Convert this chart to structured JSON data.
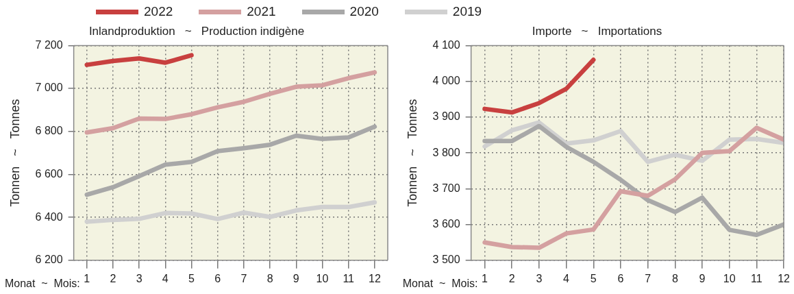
{
  "chart_data": [
    {
      "type": "line",
      "title": "Inlandproduktion   ~   Production indigène",
      "xlabel": "Monat  ~  Mois:",
      "ylabel": "Tonnen   ~   Tonnes",
      "x": [
        1,
        2,
        3,
        4,
        5,
        6,
        7,
        8,
        9,
        10,
        11,
        12
      ],
      "xlim": [
        0.5,
        12.5
      ],
      "xticks": [
        1,
        2,
        3,
        4,
        5,
        6,
        7,
        8,
        9,
        10,
        11,
        12
      ],
      "ylim": [
        6200,
        7200
      ],
      "yticks": [
        {
          "value": 6200,
          "label": "6 200"
        },
        {
          "value": 6400,
          "label": "6 400"
        },
        {
          "value": 6600,
          "label": "6 600"
        },
        {
          "value": 6800,
          "label": "6 800"
        },
        {
          "value": 7000,
          "label": "7 000"
        },
        {
          "value": 7200,
          "label": "7 200"
        }
      ],
      "grid": true,
      "legend": "top",
      "marker": "none",
      "line_style": "solid",
      "series": [
        {
          "name": "2022",
          "color": "#c8403f",
          "values": [
            7110,
            7128,
            7140,
            7120,
            7155,
            null,
            null,
            null,
            null,
            null,
            null,
            null
          ]
        },
        {
          "name": "2021",
          "color": "#d4a0a0",
          "values": [
            6795,
            6815,
            6860,
            6858,
            6880,
            6912,
            6938,
            6975,
            7008,
            7015,
            7048,
            7075
          ]
        },
        {
          "name": "2020",
          "color": "#a8a8a8",
          "values": [
            6505,
            6540,
            6592,
            6645,
            6658,
            6708,
            6722,
            6738,
            6780,
            6765,
            6772,
            6822
          ]
        },
        {
          "name": "2019",
          "color": "#d0d0d0",
          "values": [
            6380,
            6388,
            6393,
            6420,
            6418,
            6392,
            6422,
            6402,
            6432,
            6448,
            6448,
            6470
          ]
        }
      ]
    },
    {
      "type": "line",
      "title": "Importe   ~   Importations",
      "xlabel": "Monat  ~  Mois:",
      "ylabel": "Tonnen   ~   Tonnes",
      "x": [
        1,
        2,
        3,
        4,
        5,
        6,
        7,
        8,
        9,
        10,
        11,
        12
      ],
      "xlim": [
        0.5,
        12
      ],
      "xticks": [
        1,
        2,
        3,
        4,
        5,
        6,
        7,
        8,
        9,
        10,
        11,
        12
      ],
      "ylim": [
        3500,
        4100
      ],
      "yticks": [
        {
          "value": 3500,
          "label": "3 500"
        },
        {
          "value": 3600,
          "label": "3 600"
        },
        {
          "value": 3700,
          "label": "3 700"
        },
        {
          "value": 3800,
          "label": "3 800"
        },
        {
          "value": 3900,
          "label": "3 900"
        },
        {
          "value": 4000,
          "label": "4 000"
        },
        {
          "value": 4100,
          "label": "4 100"
        }
      ],
      "grid": true,
      "legend": "top",
      "marker": "none",
      "line_style": "solid",
      "series": [
        {
          "name": "2022",
          "color": "#c8403f",
          "values": [
            3923,
            3913,
            3939,
            3979,
            4060,
            null,
            null,
            null,
            null,
            null,
            null,
            null
          ]
        },
        {
          "name": "2021",
          "color": "#d4a0a0",
          "values": [
            3550,
            3537,
            3535,
            3575,
            3586,
            3693,
            3680,
            3726,
            3800,
            3805,
            3870,
            3837
          ]
        },
        {
          "name": "2020",
          "color": "#a8a8a8",
          "values": [
            3833,
            3833,
            3875,
            3817,
            3775,
            3725,
            3668,
            3635,
            3675,
            3585,
            3571,
            3600
          ]
        },
        {
          "name": "2019",
          "color": "#d0d0d0",
          "values": [
            3818,
            3863,
            3885,
            3826,
            3835,
            3861,
            3775,
            3795,
            3778,
            3837,
            3839,
            3828
          ]
        }
      ]
    }
  ]
}
